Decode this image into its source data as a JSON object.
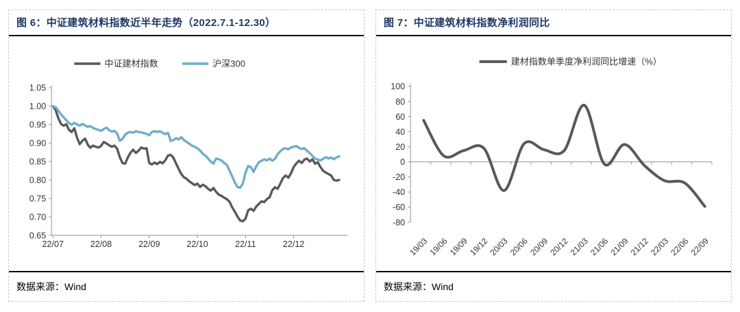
{
  "page": {
    "background": "#ffffff"
  },
  "colors": {
    "title_navy": "#1f3864",
    "series_gray": "#595959",
    "series_blue": "#6fadca",
    "axis_line": "#a6a6a6",
    "tick_label": "#333333",
    "separator_black": "#000000",
    "panel_border": "#c6c6c6"
  },
  "panels": [
    {
      "figure_label": "图 6",
      "title": "图 6：中证建筑材料指数近半年走势（2022.7.1-12.30）",
      "source": "数据来源：Wind"
    },
    {
      "figure_label": "图 7",
      "title": "图 7：中证建筑材料指数净利润同比",
      "source": "数据来源：Wind"
    }
  ],
  "chart_data": [
    {
      "type": "line",
      "title": "中证建筑材料指数近半年走势（2022.7.1-12.30）",
      "x_tick_labels": [
        "22/07",
        "22/08",
        "22/09",
        "22/10",
        "22/11",
        "22/12"
      ],
      "points_per_month": 18,
      "ylim": [
        0.65,
        1.05
      ],
      "ytick_step": 0.05,
      "grid": false,
      "legend_position": "top",
      "series": [
        {
          "name": "中证建材指数",
          "color": "#595959",
          "values": [
            1.0,
            0.99,
            0.968,
            0.952,
            0.947,
            0.951,
            0.936,
            0.93,
            0.94,
            0.915,
            0.897,
            0.906,
            0.912,
            0.896,
            0.887,
            0.893,
            0.89,
            0.888,
            0.892,
            0.903,
            0.899,
            0.894,
            0.89,
            0.893,
            0.885,
            0.862,
            0.846,
            0.844,
            0.861,
            0.874,
            0.882,
            0.873,
            0.879,
            0.888,
            0.885,
            0.886,
            0.846,
            0.842,
            0.847,
            0.843,
            0.849,
            0.845,
            0.853,
            0.866,
            0.868,
            0.861,
            0.845,
            0.83,
            0.816,
            0.807,
            0.803,
            0.796,
            0.791,
            0.786,
            0.79,
            0.781,
            0.787,
            0.783,
            0.776,
            0.771,
            0.778,
            0.768,
            0.76,
            0.757,
            0.752,
            0.748,
            0.741,
            0.726,
            0.714,
            0.701,
            0.69,
            0.688,
            0.695,
            0.718,
            0.722,
            0.716,
            0.728,
            0.735,
            0.742,
            0.74,
            0.748,
            0.753,
            0.772,
            0.78,
            0.776,
            0.79,
            0.805,
            0.812,
            0.806,
            0.818,
            0.835,
            0.845,
            0.852,
            0.846,
            0.855,
            0.858,
            0.85,
            0.856,
            0.844,
            0.848,
            0.835,
            0.825,
            0.82,
            0.816,
            0.812,
            0.8,
            0.798,
            0.8
          ]
        },
        {
          "name": "沪深300",
          "color": "#6fadca",
          "values": [
            1.0,
            0.997,
            0.988,
            0.978,
            0.97,
            0.962,
            0.954,
            0.95,
            0.955,
            0.951,
            0.947,
            0.952,
            0.948,
            0.944,
            0.946,
            0.941,
            0.938,
            0.936,
            0.933,
            0.938,
            0.942,
            0.935,
            0.931,
            0.933,
            0.926,
            0.906,
            0.911,
            0.923,
            0.928,
            0.93,
            0.928,
            0.932,
            0.93,
            0.929,
            0.927,
            0.925,
            0.921,
            0.93,
            0.932,
            0.93,
            0.932,
            0.928,
            0.924,
            0.928,
            0.906,
            0.908,
            0.913,
            0.91,
            0.916,
            0.908,
            0.903,
            0.898,
            0.893,
            0.89,
            0.886,
            0.88,
            0.871,
            0.866,
            0.858,
            0.85,
            0.844,
            0.858,
            0.856,
            0.853,
            0.846,
            0.841,
            0.825,
            0.81,
            0.793,
            0.781,
            0.779,
            0.79,
            0.82,
            0.838,
            0.835,
            0.822,
            0.837,
            0.848,
            0.852,
            0.856,
            0.853,
            0.858,
            0.852,
            0.857,
            0.87,
            0.878,
            0.884,
            0.886,
            0.883,
            0.888,
            0.89,
            0.892,
            0.887,
            0.884,
            0.886,
            0.879,
            0.873,
            0.865,
            0.858,
            0.855,
            0.853,
            0.857,
            0.862,
            0.858,
            0.861,
            0.856,
            0.861,
            0.864
          ]
        }
      ]
    },
    {
      "type": "line",
      "smoothed": true,
      "title": "中证建筑材料指数净利润同比",
      "categories": [
        "19/03",
        "19/06",
        "19/09",
        "19/12",
        "20/03",
        "20/06",
        "20/09",
        "20/12",
        "21/03",
        "21/06",
        "21/09",
        "21/12",
        "22/03",
        "22/06",
        "22/09"
      ],
      "ylim": [
        -80,
        100
      ],
      "ytick_step": 20,
      "zero_axis": true,
      "grid": false,
      "legend_position": "top",
      "series": [
        {
          "name": "建材指数单季度净利润同比增速（%）",
          "color": "#595959",
          "values": [
            55,
            8,
            15,
            18,
            -38,
            24,
            16,
            15,
            75,
            -3,
            23,
            -5,
            -25,
            -28,
            -59
          ]
        }
      ]
    }
  ]
}
